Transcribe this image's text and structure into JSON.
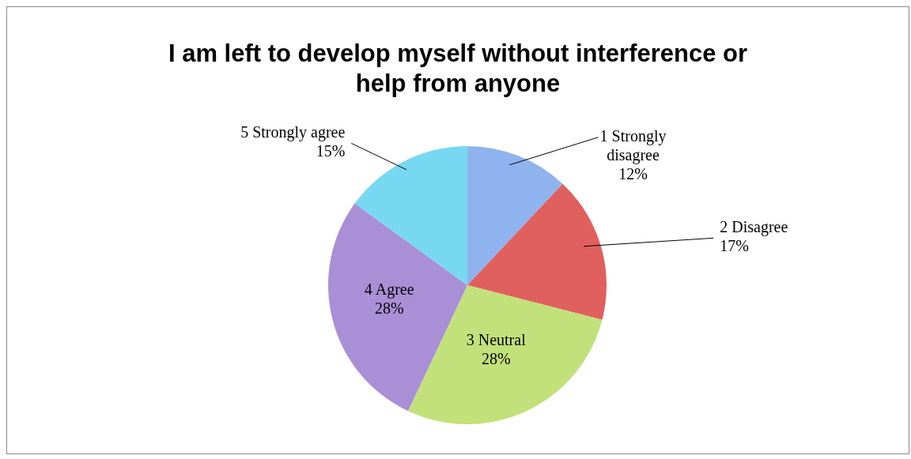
{
  "chart_data": {
    "type": "pie",
    "title": "I am left to develop myself without interference or help from anyone",
    "categories": [
      "1 Strongly disagree",
      "2 Disagree",
      "3 Neutral",
      "4 Agree",
      "5 Strongly agree"
    ],
    "values": [
      12,
      17,
      28,
      28,
      15
    ],
    "value_labels": [
      "12%",
      "17%",
      "28%",
      "28%",
      "15%"
    ],
    "colors": [
      "#8fb3ee",
      "#e0605e",
      "#c2e17a",
      "#a98fd6",
      "#78d8f2"
    ]
  }
}
